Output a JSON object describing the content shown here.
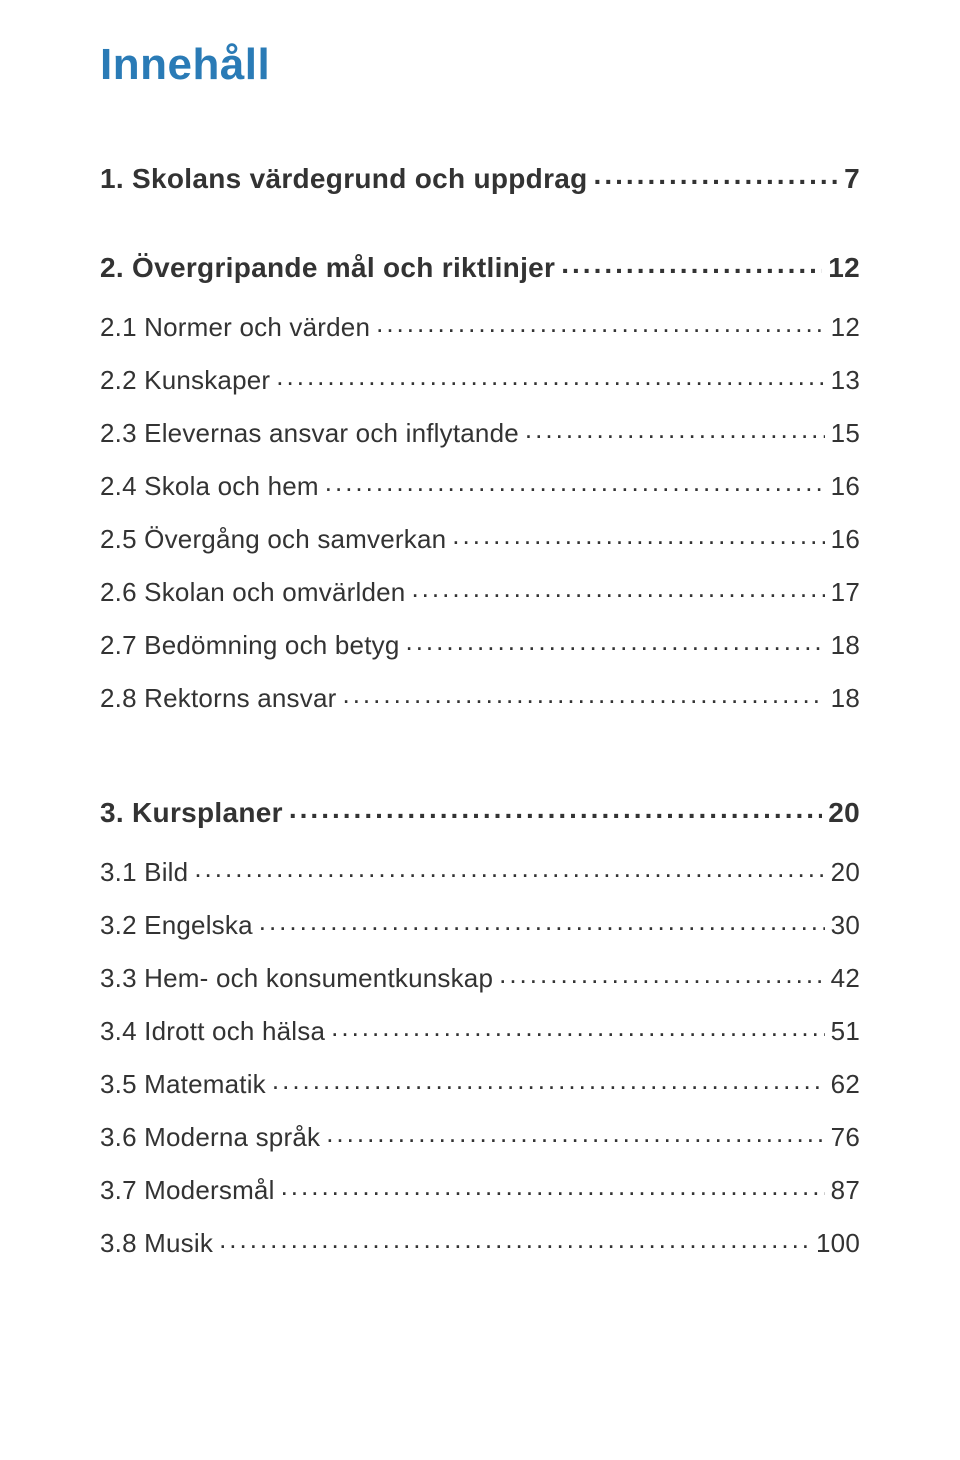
{
  "title": "Innehåll",
  "title_color": "#2a7bb6",
  "text_color": "#333333",
  "background_color": "#ffffff",
  "title_fontsize": 44,
  "top_fontsize": 28,
  "sub_fontsize": 26,
  "sections": [
    {
      "label": "1. Skolans värdegrund och uppdrag",
      "page": "7",
      "level": "top"
    },
    {
      "label": "2. Övergripande mål och riktlinjer",
      "page": "12",
      "level": "top"
    },
    {
      "label": "2.1 Normer och värden",
      "page": "12",
      "level": "sub"
    },
    {
      "label": "2.2 Kunskaper",
      "page": "13",
      "level": "sub"
    },
    {
      "label": "2.3 Elevernas ansvar och inflytande",
      "page": "15",
      "level": "sub"
    },
    {
      "label": "2.4 Skola och hem",
      "page": "16",
      "level": "sub"
    },
    {
      "label": "2.5 Övergång och samverkan",
      "page": "16",
      "level": "sub"
    },
    {
      "label": "2.6 Skolan och omvärlden",
      "page": "17",
      "level": "sub"
    },
    {
      "label": "2.7 Bedömning och betyg",
      "page": "18",
      "level": "sub"
    },
    {
      "label": "2.8 Rektorns ansvar",
      "page": "18",
      "level": "sub"
    },
    {
      "label": "3. Kursplaner",
      "page": "20",
      "level": "top",
      "extra_gap": true
    },
    {
      "label": "3.1 Bild",
      "page": "20",
      "level": "sub"
    },
    {
      "label": "3.2 Engelska",
      "page": "30",
      "level": "sub"
    },
    {
      "label": "3.3 Hem- och konsumentkunskap",
      "page": "42",
      "level": "sub"
    },
    {
      "label": "3.4 Idrott och hälsa",
      "page": "51",
      "level": "sub"
    },
    {
      "label": "3.5 Matematik",
      "page": "62",
      "level": "sub"
    },
    {
      "label": "3.6 Moderna språk",
      "page": "76",
      "level": "sub"
    },
    {
      "label": "3.7 Modersmål",
      "page": "87",
      "level": "sub"
    },
    {
      "label": "3.8 Musik",
      "page": "100",
      "level": "sub"
    }
  ]
}
